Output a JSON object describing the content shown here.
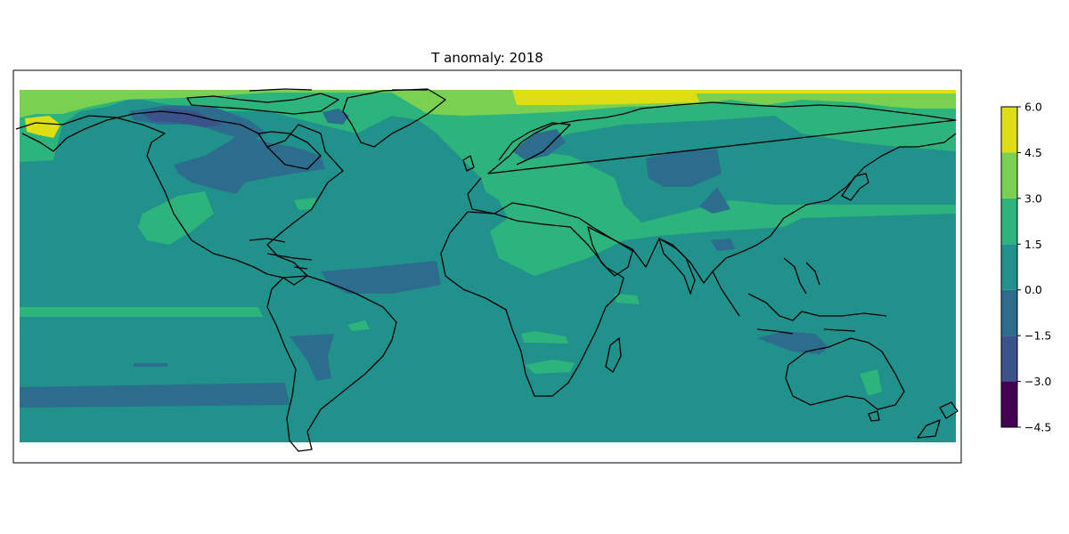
{
  "title": "T anomaly: 2018",
  "colorbar": {
    "ticks": [
      -4.5,
      -3.0,
      -1.5,
      0.0,
      1.5,
      3.0,
      4.5,
      6.0
    ],
    "tick_labels": [
      "−4.5",
      "−3.0",
      "−1.5",
      "0.0",
      "1.5",
      "3.0",
      "4.5",
      "6.0"
    ],
    "levels": [
      {
        "min": -4.5,
        "max": -3.0,
        "color": "#440154"
      },
      {
        "min": -3.0,
        "max": -1.5,
        "color": "#3b528b"
      },
      {
        "min": -1.5,
        "max": 0.0,
        "color": "#2c6d8e"
      },
      {
        "min": 0.0,
        "max": 1.5,
        "color": "#21918c"
      },
      {
        "min": 1.5,
        "max": 3.0,
        "color": "#2db37c"
      },
      {
        "min": 3.0,
        "max": 4.5,
        "color": "#7ad151"
      },
      {
        "min": 4.5,
        "max": 6.0,
        "color": "#dede14"
      }
    ]
  },
  "map": {
    "projection": "PlateCarree",
    "coastline_color": "#000000",
    "background_level_color": "#21918c"
  }
}
